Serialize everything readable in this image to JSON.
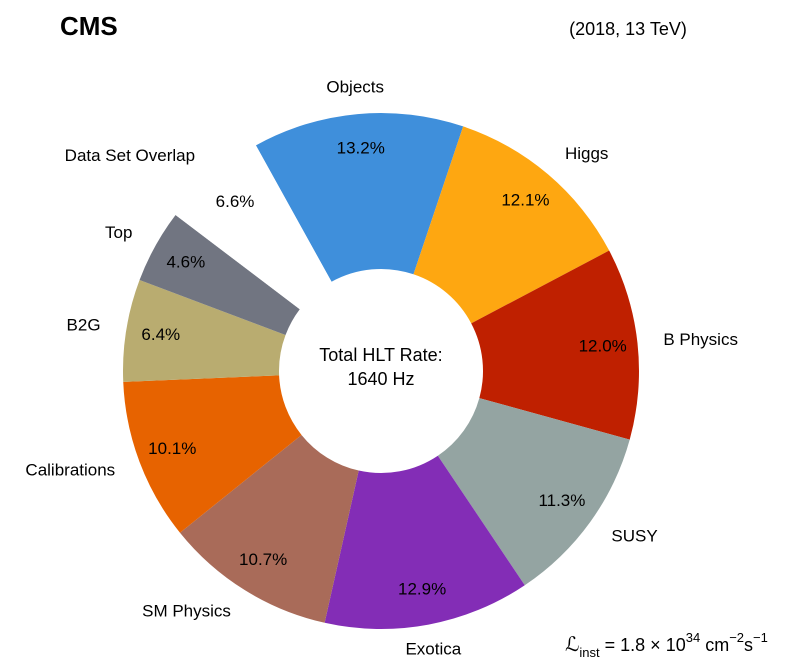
{
  "chart_data": {
    "type": "donut",
    "title": "CMS",
    "subtitle": "(2018, 13 TeV)",
    "center_text": [
      "Total HLT Rate:",
      "1640 Hz"
    ],
    "annotation": [
      "ℒ",
      "inst",
      " = 1.8 × 10",
      "34",
      " cm",
      "−2",
      "s",
      "−1"
    ],
    "categories": [
      "Objects",
      "Higgs",
      "B Physics",
      "SUSY",
      "Exotica",
      "SM Physics",
      "Calibrations",
      "B2G",
      "Top",
      "Data Set Overlap"
    ],
    "values": [
      13.2,
      12.1,
      12.0,
      11.3,
      12.9,
      10.7,
      10.1,
      6.4,
      4.6,
      6.6
    ],
    "value_labels": [
      "13.2%",
      "12.1%",
      "12.0%",
      "11.3%",
      "12.9%",
      "10.7%",
      "10.1%",
      "6.4%",
      "4.6%",
      "6.6%"
    ],
    "colors": [
      "#3f8fdb",
      "#fea711",
      "#bf2000",
      "#94a4a2",
      "#832db6",
      "#a96b59",
      "#e76300",
      "#b9ac70",
      "#717581",
      "#ffffff"
    ]
  }
}
